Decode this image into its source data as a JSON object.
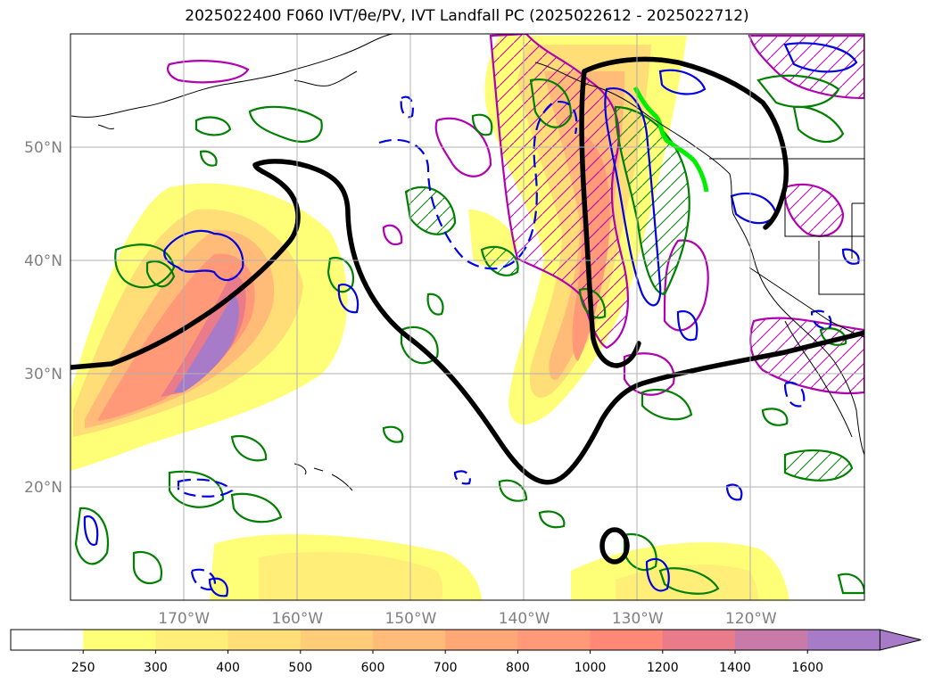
{
  "title": "2025022400 F060 IVT/θe/PV, IVT Landfall PC (2025022612 - 2025022712)",
  "map": {
    "lon_range": [
      -180,
      -110
    ],
    "lat_range": [
      10,
      60
    ],
    "lat_ticks": [
      {
        "value": 20,
        "label": "20°N"
      },
      {
        "value": 30,
        "label": "30°N"
      },
      {
        "value": 40,
        "label": "40°N"
      },
      {
        "value": 50,
        "label": "50°N"
      }
    ],
    "lon_ticks": [
      {
        "value": -170,
        "label": "170°W"
      },
      {
        "value": -160,
        "label": "160°W"
      },
      {
        "value": -150,
        "label": "150°W"
      },
      {
        "value": -140,
        "label": "140°W"
      },
      {
        "value": -130,
        "label": "130°W"
      },
      {
        "value": -120,
        "label": "120°W"
      }
    ],
    "grid": true
  },
  "colorbar": {
    "levels": [
      "250",
      "300",
      "400",
      "500",
      "600",
      "700",
      "800",
      "1000",
      "1200",
      "1400",
      "1600"
    ],
    "colors": [
      "#ffff77",
      "#ffee77",
      "#ffdd77",
      "#ffcc77",
      "#ffbb77",
      "#ffa777",
      "#ff9977",
      "#ff8877",
      "#e97b8a",
      "#c87aa8",
      "#a77bc8"
    ],
    "below_color": "#ffffff",
    "extend": "max"
  }
}
